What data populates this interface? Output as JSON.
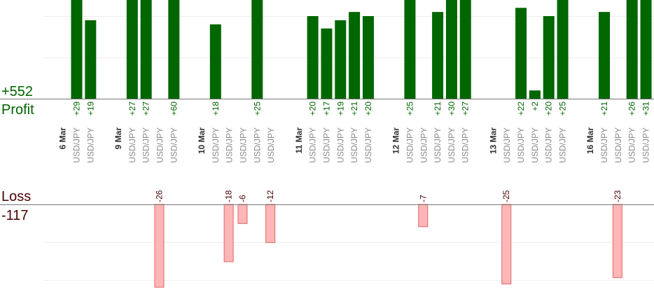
{
  "summary": {
    "profit_total": "+552",
    "profit_label": "Profit",
    "loss_label": "Loss",
    "loss_total": "-117"
  },
  "colors": {
    "profit": "#006400",
    "profit_bar": "#006600",
    "loss_text": "#4a0000",
    "loss_bar_fill": "#ffb6b6",
    "loss_bar_stroke": "#e06666",
    "axis": "#777777",
    "grid": "#eeeeee"
  },
  "chart_data": [
    {
      "type": "bar",
      "title": "",
      "series": [
        {
          "name": "Profit",
          "values": [
            29,
            19,
            27,
            27,
            60,
            18,
            25,
            20,
            17,
            19,
            21,
            20,
            25,
            21,
            30,
            27,
            22,
            2,
            20,
            25,
            21,
            26,
            31
          ],
          "labels": [
            "+29",
            "+19",
            "+27",
            "+27",
            "+60",
            "+18",
            "+25",
            "+20",
            "+17",
            "+19",
            "+21",
            "+20",
            "+25",
            "+21",
            "+30",
            "+27",
            "+22",
            "+2",
            "+20",
            "+25",
            "+21",
            "+26",
            "+31"
          ],
          "slots": [
            5,
            6,
            9,
            10,
            12,
            15,
            18,
            22,
            23,
            24,
            25,
            26,
            29,
            31,
            32,
            33,
            37,
            38,
            39,
            40,
            43,
            45,
            46
          ]
        },
        {
          "name": "Loss",
          "values": [
            -26,
            -18,
            -6,
            -12,
            -7,
            -25,
            -23
          ],
          "labels": [
            "-26",
            "-18",
            "-6",
            "-12",
            "-7",
            "-25",
            "-23"
          ],
          "slots": [
            11,
            16,
            17,
            19,
            30,
            36,
            44
          ]
        }
      ]
    }
  ],
  "axis": {
    "categories": [
      {
        "slot": 4,
        "text": "6 Mar",
        "kind": "date"
      },
      {
        "slot": 5,
        "text": "USD/JPY",
        "kind": "pair"
      },
      {
        "slot": 6,
        "text": "USD/JPY",
        "kind": "pair"
      },
      {
        "slot": 8,
        "text": "9 Mar",
        "kind": "date"
      },
      {
        "slot": 9,
        "text": "USD/JPY",
        "kind": "pair"
      },
      {
        "slot": 10,
        "text": "USD/JPY",
        "kind": "pair"
      },
      {
        "slot": 11,
        "text": "USD/JPY",
        "kind": "pair"
      },
      {
        "slot": 12,
        "text": "USD/JPY",
        "kind": "pair"
      },
      {
        "slot": 14,
        "text": "10 Mar",
        "kind": "date"
      },
      {
        "slot": 15,
        "text": "USD/JPY",
        "kind": "pair"
      },
      {
        "slot": 16,
        "text": "USD/JPY",
        "kind": "pair"
      },
      {
        "slot": 17,
        "text": "USD/JPY",
        "kind": "pair"
      },
      {
        "slot": 18,
        "text": "USD/JPY",
        "kind": "pair"
      },
      {
        "slot": 19,
        "text": "USD/JPY",
        "kind": "pair"
      },
      {
        "slot": 21,
        "text": "11 Mar",
        "kind": "date"
      },
      {
        "slot": 22,
        "text": "USD/JPY",
        "kind": "pair"
      },
      {
        "slot": 23,
        "text": "USD/JPY",
        "kind": "pair"
      },
      {
        "slot": 24,
        "text": "USD/JPY",
        "kind": "pair"
      },
      {
        "slot": 25,
        "text": "USD/JPY",
        "kind": "pair"
      },
      {
        "slot": 26,
        "text": "USD/JPY",
        "kind": "pair"
      },
      {
        "slot": 28,
        "text": "12 Mar",
        "kind": "date"
      },
      {
        "slot": 29,
        "text": "USD/JPY",
        "kind": "pair"
      },
      {
        "slot": 30,
        "text": "USD/JPY",
        "kind": "pair"
      },
      {
        "slot": 31,
        "text": "USD/JPY",
        "kind": "pair"
      },
      {
        "slot": 32,
        "text": "USD/JPY",
        "kind": "pair"
      },
      {
        "slot": 33,
        "text": "USD/JPY",
        "kind": "pair"
      },
      {
        "slot": 35,
        "text": "13 Mar",
        "kind": "date"
      },
      {
        "slot": 36,
        "text": "USD/JPY",
        "kind": "pair"
      },
      {
        "slot": 37,
        "text": "USD/JPY",
        "kind": "pair"
      },
      {
        "slot": 38,
        "text": "USD/JPY",
        "kind": "pair"
      },
      {
        "slot": 39,
        "text": "USD/JPY",
        "kind": "pair"
      },
      {
        "slot": 40,
        "text": "USD/JPY",
        "kind": "pair"
      },
      {
        "slot": 42,
        "text": "16 Mar",
        "kind": "date"
      },
      {
        "slot": 43,
        "text": "USD/JPY",
        "kind": "pair"
      },
      {
        "slot": 44,
        "text": "USD/JPY",
        "kind": "pair"
      },
      {
        "slot": 45,
        "text": "USD/JPY",
        "kind": "pair"
      },
      {
        "slot": 46,
        "text": "USD/JPY",
        "kind": "pair"
      }
    ]
  }
}
